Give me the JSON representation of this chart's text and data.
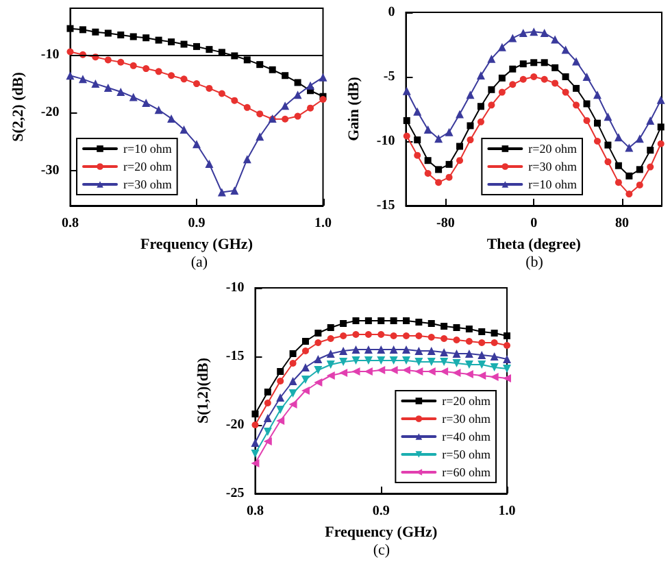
{
  "chart_data": [
    {
      "type": "line",
      "xlabel": "Frequency (GHz)",
      "ylabel": "S(2,2) (dB)",
      "annotations": [
        "(a)"
      ],
      "xlim": [
        0.8,
        1.0
      ],
      "ylim": [
        -36,
        -2
      ],
      "xticks": [
        0.8,
        0.9,
        {
          "value": 1,
          "label": "1.0"
        }
      ],
      "yticks": [
        -10,
        -20,
        -30
      ],
      "grid": false,
      "legend": "bottom left",
      "line_style": "solid",
      "x": [
        0.8,
        0.81,
        0.82,
        0.83,
        0.84,
        0.85,
        0.86,
        0.87,
        0.88,
        0.89,
        0.9,
        0.91,
        0.92,
        0.93,
        0.94,
        0.95,
        0.96,
        0.97,
        0.98,
        0.99,
        1.0
      ],
      "ref_lines": [
        {
          "axis": "y",
          "value": -10,
          "label": null,
          "color": "#000000"
        }
      ],
      "series": [
        {
          "name": "r=10 ohm",
          "color": "#000000",
          "marker": "square",
          "values": [
            -5.5,
            -5.7,
            -6.1,
            -6.3,
            -6.6,
            -6.9,
            -7.1,
            -7.5,
            -7.8,
            -8.2,
            -8.6,
            -9.1,
            -9.6,
            -10.2,
            -10.9,
            -11.7,
            -12.6,
            -13.6,
            -14.8,
            -16.2,
            -17.2
          ]
        },
        {
          "name": "r=20 ohm",
          "color": "#e8322f",
          "marker": "circle",
          "values": [
            -9.5,
            -10,
            -10.4,
            -10.9,
            -11.3,
            -11.9,
            -12.4,
            -12.9,
            -13.6,
            -14.2,
            -15.0,
            -15.8,
            -16.7,
            -17.9,
            -19.1,
            -20.2,
            -21.1,
            -21.1,
            -20.6,
            -19.2,
            -17.7
          ]
        },
        {
          "name": "r=30 ohm",
          "color": "#3a3a9c",
          "marker": "triangle",
          "values": [
            -13.6,
            -14.2,
            -15.0,
            -15.7,
            -16.4,
            -17.3,
            -18.3,
            -19.5,
            -21.0,
            -22.9,
            -25.4,
            -28.8,
            -33.7,
            -33.4,
            -28.0,
            -24.1,
            -21.0,
            -18.8,
            -16.9,
            -15.3,
            -13.9
          ]
        }
      ]
    },
    {
      "type": "line",
      "xlabel": "Theta (degree)",
      "ylabel": "Gain (dB)",
      "annotations": [
        "(b)"
      ],
      "xlim": [
        -116,
        116
      ],
      "ylim": [
        -15,
        0
      ],
      "xticks": [
        -80,
        0,
        80
      ],
      "yticks": [
        0,
        -5,
        -10,
        -15
      ],
      "grid": false,
      "legend": "bottom right",
      "line_style": "solid",
      "x": [
        -115.2,
        -105.6,
        -96,
        -86.4,
        -76.8,
        -67.2,
        -57.6,
        -48,
        -38.4,
        -28.8,
        -19.2,
        -9.6,
        0,
        9.6,
        19.2,
        28.8,
        38.4,
        48,
        57.6,
        67.2,
        76.8,
        86.4,
        96,
        105.6,
        115.2
      ],
      "series": [
        {
          "name": "r=20 ohm",
          "color": "#000000",
          "marker": "square",
          "values": [
            -8.4,
            -9.9,
            -11.5,
            -12.2,
            -11.8,
            -10.4,
            -8.8,
            -7.3,
            -6.0,
            -5.1,
            -4.4,
            -4.0,
            -3.9,
            -3.9,
            -4.3,
            -5.0,
            -5.9,
            -7.1,
            -8.6,
            -10.3,
            -11.9,
            -12.7,
            -12.2,
            -10.7,
            -8.9
          ]
        },
        {
          "name": "r=30 ohm",
          "color": "#e8322f",
          "marker": "circle",
          "values": [
            -9.6,
            -11.1,
            -12.5,
            -13.2,
            -12.8,
            -11.5,
            -9.9,
            -8.5,
            -7.2,
            -6.2,
            -5.6,
            -5.2,
            -5.0,
            -5.2,
            -5.5,
            -6.2,
            -7.2,
            -8.4,
            -10.0,
            -11.6,
            -13.2,
            -14.1,
            -13.4,
            -12.0,
            -10.2
          ]
        },
        {
          "name": "r=10 ohm",
          "color": "#3a3a9c",
          "marker": "triangle",
          "values": [
            -6.1,
            -7.7,
            -9.1,
            -9.8,
            -9.3,
            -7.9,
            -6.4,
            -4.9,
            -3.6,
            -2.7,
            -2.0,
            -1.6,
            -1.5,
            -1.6,
            -2.1,
            -2.9,
            -3.8,
            -5.0,
            -6.4,
            -8.1,
            -9.7,
            -10.5,
            -9.8,
            -8.4,
            -6.8
          ]
        }
      ]
    },
    {
      "type": "line",
      "xlabel": "Frequency (GHz)",
      "ylabel": "S(1,2)(dB)",
      "annotations": [
        "(c)"
      ],
      "xlim": [
        0.8,
        1.0
      ],
      "ylim": [
        -25,
        -10
      ],
      "xticks": [
        0.8,
        0.9,
        {
          "value": 1,
          "label": "1.0"
        }
      ],
      "yticks": [
        -10,
        -15,
        -20,
        -25
      ],
      "grid": false,
      "legend": "bottom right",
      "line_style": "solid",
      "x": [
        0.8,
        0.81,
        0.82,
        0.83,
        0.84,
        0.85,
        0.86,
        0.87,
        0.88,
        0.89,
        0.9,
        0.91,
        0.92,
        0.93,
        0.94,
        0.95,
        0.96,
        0.97,
        0.98,
        0.99,
        1.0
      ],
      "series": [
        {
          "name": "r=20 ohm",
          "color": "#000000",
          "marker": "square",
          "values": [
            -19.2,
            -17.6,
            -16.1,
            -14.8,
            -13.9,
            -13.3,
            -12.9,
            -12.6,
            -12.4,
            -12.4,
            -12.4,
            -12.4,
            -12.4,
            -12.5,
            -12.6,
            -12.8,
            -12.9,
            -13.0,
            -13.2,
            -13.3,
            -13.5
          ]
        },
        {
          "name": "r=30 ohm",
          "color": "#e8322f",
          "marker": "circle",
          "values": [
            -20.0,
            -18.4,
            -16.8,
            -15.5,
            -14.6,
            -14.0,
            -13.7,
            -13.5,
            -13.4,
            -13.4,
            -13.4,
            -13.5,
            -13.5,
            -13.5,
            -13.6,
            -13.7,
            -13.8,
            -13.9,
            -14.0,
            -14.0,
            -14.2
          ]
        },
        {
          "name": "r=40 ohm",
          "color": "#3a3a9c",
          "marker": "triangle",
          "values": [
            -21.3,
            -19.5,
            -18.0,
            -16.8,
            -15.8,
            -15.2,
            -14.8,
            -14.6,
            -14.5,
            -14.5,
            -14.5,
            -14.5,
            -14.5,
            -14.6,
            -14.6,
            -14.7,
            -14.8,
            -14.8,
            -14.9,
            -15.0,
            -15.2
          ]
        },
        {
          "name": "r=50 ohm",
          "color": "#1aaeb0",
          "marker": "triangle-down",
          "values": [
            -22.1,
            -20.5,
            -18.9,
            -17.7,
            -16.7,
            -16.0,
            -15.6,
            -15.4,
            -15.3,
            -15.3,
            -15.3,
            -15.3,
            -15.3,
            -15.4,
            -15.4,
            -15.4,
            -15.5,
            -15.6,
            -15.6,
            -15.8,
            -15.9
          ]
        },
        {
          "name": "r=60 ohm",
          "color": "#e23fb0",
          "marker": "triangle-left",
          "values": [
            -22.8,
            -21.2,
            -19.7,
            -18.5,
            -17.5,
            -16.9,
            -16.4,
            -16.2,
            -16.1,
            -16.1,
            -16.0,
            -16.0,
            -16.0,
            -16.1,
            -16.1,
            -16.1,
            -16.2,
            -16.3,
            -16.4,
            -16.5,
            -16.6
          ]
        }
      ]
    }
  ]
}
